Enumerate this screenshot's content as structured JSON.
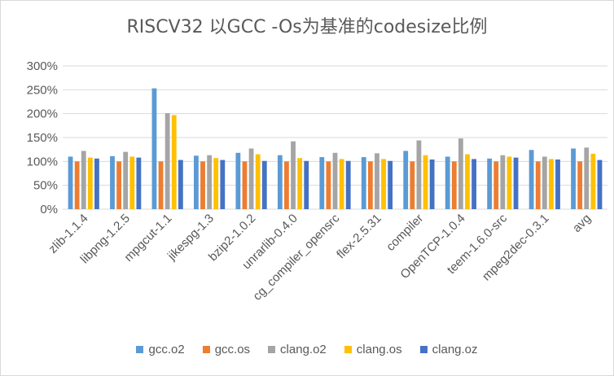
{
  "chart_data": {
    "type": "bar",
    "title": "RISCV32 以GCC -Os为基准的codesize比例",
    "xlabel": "",
    "ylabel": "",
    "ylim": [
      0,
      300
    ],
    "y_ticks": [
      "0%",
      "50%",
      "100%",
      "150%",
      "200%",
      "250%",
      "300%"
    ],
    "grid": true,
    "legend_position": "bottom",
    "categories": [
      "zlib-1.1.4",
      "libpng-1.2.5",
      "mpgcut-1.1",
      "jikespg-1.3",
      "bzip2-1.0.2",
      "unrarlib-0.4.0",
      "cg_compiler_opensrc",
      "flex-2.5.31",
      "compiler",
      "OpenTCP-1.0.4",
      "teem-1.6.0-src",
      "mpeg2dec-0.3.1",
      "avg"
    ],
    "series": [
      {
        "name": "gcc.o2",
        "color": "#5b9bd5",
        "values": [
          110,
          111,
          253,
          112,
          118,
          113,
          109,
          109,
          122,
          110,
          106,
          124,
          127
        ]
      },
      {
        "name": "gcc.os",
        "color": "#ed7d31",
        "values": [
          100,
          100,
          100,
          100,
          100,
          100,
          100,
          100,
          100,
          100,
          100,
          100,
          100
        ]
      },
      {
        "name": "clang.o2",
        "color": "#a5a5a5",
        "values": [
          122,
          120,
          201,
          113,
          127,
          142,
          118,
          117,
          144,
          148,
          113,
          110,
          129
        ]
      },
      {
        "name": "clang.os",
        "color": "#ffc000",
        "values": [
          108,
          110,
          197,
          107,
          115,
          107,
          105,
          105,
          113,
          115,
          110,
          105,
          116
        ]
      },
      {
        "name": "clang.oz",
        "color": "#4472c4",
        "values": [
          106,
          108,
          103,
          103,
          101,
          101,
          101,
          101,
          104,
          105,
          108,
          104,
          103
        ]
      }
    ]
  }
}
